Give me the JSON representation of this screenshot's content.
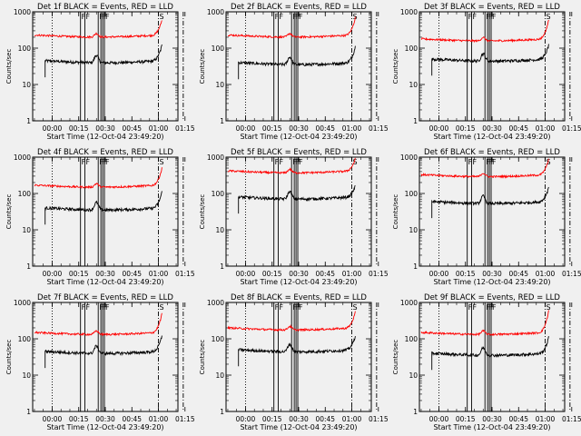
{
  "chart_data": {
    "type": "line",
    "y_scale": "log",
    "ylim": [
      1,
      1000
    ],
    "xlim_minutes": [
      -11,
      71
    ],
    "ylabel": "Counts/sec",
    "xlabel": "Start Time (12-Oct-04 23:49:20)",
    "x_tick_labels": [
      "00:00",
      "00:15",
      "00:30",
      "00:45",
      "01:00",
      "01:15"
    ],
    "x_tick_minutes": [
      0,
      15,
      30,
      45,
      60,
      75
    ],
    "y_tick_labels": [
      "1",
      "10",
      "100",
      "1000"
    ],
    "y_tick_values": [
      1,
      10,
      100,
      1000
    ],
    "vertical_markers": [
      {
        "minute": 0,
        "style": "dotted"
      },
      {
        "minute": 16,
        "style": "solid",
        "label": "F"
      },
      {
        "minute": 18.5,
        "style": "solid",
        "label": "F"
      },
      {
        "minute": 26,
        "style": "solid",
        "label": "F"
      },
      {
        "minute": 27.5,
        "style": "solid",
        "label": "F"
      },
      {
        "minute": 28.5,
        "style": "solid",
        "label": "F"
      },
      {
        "minute": 29.5,
        "style": "solid",
        "label": "F"
      },
      {
        "minute": 60,
        "style": "dashdot",
        "label": "S"
      },
      {
        "minute": 74,
        "style": "dashdot"
      }
    ],
    "panels": [
      {
        "title": "Det 1f BLACK = Events, RED = LLD",
        "events_base": 45,
        "lld_base": 230,
        "events_end": 120,
        "lld_end": 600
      },
      {
        "title": "Det 2f BLACK = Events, RED = LLD",
        "events_base": 40,
        "lld_base": 230,
        "events_end": 110,
        "lld_end": 700
      },
      {
        "title": "Det 3f BLACK = Events, RED = LLD",
        "events_base": 50,
        "lld_base": 180,
        "events_end": 120,
        "lld_end": 600
      },
      {
        "title": "Det 4f BLACK = Events, RED = LLD",
        "events_base": 40,
        "lld_base": 170,
        "events_end": 110,
        "lld_end": 500
      },
      {
        "title": "Det 5f BLACK = Events, RED = LLD",
        "events_base": 80,
        "lld_base": 420,
        "events_end": 160,
        "lld_end": 900
      },
      {
        "title": "Det 6f BLACK = Events, RED = LLD",
        "events_base": 60,
        "lld_base": 330,
        "events_end": 150,
        "lld_end": 900
      },
      {
        "title": "Det 7f BLACK = Events, RED = LLD",
        "events_base": 45,
        "lld_base": 150,
        "events_end": 120,
        "lld_end": 500
      },
      {
        "title": "Det 8f BLACK = Events, RED = LLD",
        "events_base": 50,
        "lld_base": 200,
        "events_end": 120,
        "lld_end": 550
      },
      {
        "title": "Det 9f BLACK = Events, RED = LLD",
        "events_base": 40,
        "lld_base": 150,
        "events_end": 110,
        "lld_end": 600
      }
    ],
    "series_colors": {
      "events": "#000000",
      "lld": "#ff0000"
    }
  }
}
